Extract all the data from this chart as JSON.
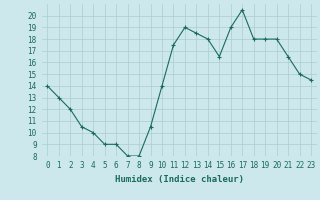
{
  "x": [
    0,
    1,
    2,
    3,
    4,
    5,
    6,
    7,
    8,
    9,
    10,
    11,
    12,
    13,
    14,
    15,
    16,
    17,
    18,
    19,
    20,
    21,
    22,
    23
  ],
  "y": [
    14,
    13,
    12,
    10.5,
    10,
    9,
    9,
    8,
    8,
    10.5,
    14,
    17.5,
    19,
    18.5,
    18,
    16.5,
    19,
    20.5,
    18,
    18,
    18,
    16.5,
    15,
    14.5
  ],
  "line_color": "#1a6b5a",
  "marker": "+",
  "marker_size": 3,
  "bg_color": "#cce8ec",
  "grid_color": "#aaccd0",
  "xlabel": "Humidex (Indice chaleur)",
  "ylim": [
    8,
    21
  ],
  "xlim": [
    -0.5,
    23.5
  ],
  "yticks": [
    8,
    9,
    10,
    11,
    12,
    13,
    14,
    15,
    16,
    17,
    18,
    19,
    20
  ],
  "xticks": [
    0,
    1,
    2,
    3,
    4,
    5,
    6,
    7,
    8,
    9,
    10,
    11,
    12,
    13,
    14,
    15,
    16,
    17,
    18,
    19,
    20,
    21,
    22,
    23
  ],
  "tick_fontsize": 5.5,
  "xlabel_fontsize": 6.5
}
